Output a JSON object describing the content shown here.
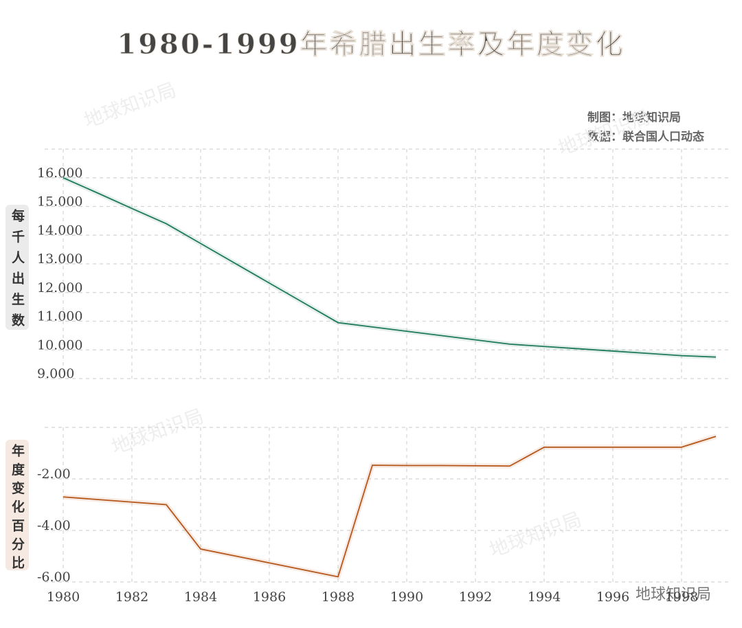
{
  "title": "1980-1999年希腊出生率及年度变化",
  "credit": "制图：地球知识局",
  "source": "数据：联合国人口动态",
  "watermark": "地球知识局",
  "chart_data": [
    {
      "type": "line",
      "y_label": "每千人出生数",
      "x": [
        1980,
        1981,
        1982,
        1983,
        1984,
        1985,
        1986,
        1987,
        1988,
        1989,
        1990,
        1991,
        1992,
        1993,
        1994,
        1995,
        1996,
        1997,
        1998,
        1999
      ],
      "series": [
        {
          "name": "每千人出生数",
          "color": "#1e7a5a",
          "values": [
            16.0,
            15.47,
            14.93,
            14.4,
            13.71,
            13.02,
            12.33,
            11.64,
            10.95,
            10.8,
            10.65,
            10.5,
            10.35,
            10.2,
            10.12,
            10.04,
            9.96,
            9.88,
            9.8,
            9.75
          ]
        }
      ],
      "xlim": [
        1979.46,
        1999.36
      ],
      "xticks": [
        1980,
        1982,
        1984,
        1986,
        1988,
        1990,
        1992,
        1994,
        1996,
        1998
      ],
      "ylim": [
        9,
        17
      ],
      "yticks": [
        {
          "value": 9,
          "label": "9.000"
        },
        {
          "value": 10,
          "label": "10.000"
        },
        {
          "value": 11,
          "label": "11.000"
        },
        {
          "value": 12,
          "label": "12.000"
        },
        {
          "value": 13,
          "label": "13.000"
        },
        {
          "value": 14,
          "label": "14.000"
        },
        {
          "value": 15,
          "label": "15.000"
        },
        {
          "value": 16,
          "label": "16.000"
        }
      ],
      "grid": true
    },
    {
      "type": "line",
      "y_label": "年度变化百分比",
      "x": [
        1980,
        1981,
        1982,
        1983,
        1984,
        1985,
        1986,
        1987,
        1988,
        1989,
        1990,
        1991,
        1992,
        1993,
        1994,
        1995,
        1996,
        1997,
        1998,
        1999
      ],
      "series": [
        {
          "name": "年度变化百分比",
          "color": "#b5561a",
          "values": [
            -2.7,
            -2.8,
            -2.9,
            -3.0,
            -4.72,
            -4.99,
            -5.26,
            -5.53,
            -5.8,
            -1.47,
            -1.48,
            -1.48,
            -1.49,
            -1.5,
            -0.77,
            -0.77,
            -0.77,
            -0.77,
            -0.77,
            -0.35
          ]
        }
      ],
      "xlim": [
        1979.46,
        1999.36
      ],
      "xticks": [
        1980,
        1982,
        1984,
        1986,
        1988,
        1990,
        1992,
        1994,
        1996,
        1998
      ],
      "ylim": [
        -6,
        0
      ],
      "yticks": [
        {
          "value": -6,
          "label": "-6.00"
        },
        {
          "value": -4,
          "label": "-4.00"
        },
        {
          "value": -2,
          "label": "-2.00"
        }
      ],
      "grid": true
    }
  ]
}
